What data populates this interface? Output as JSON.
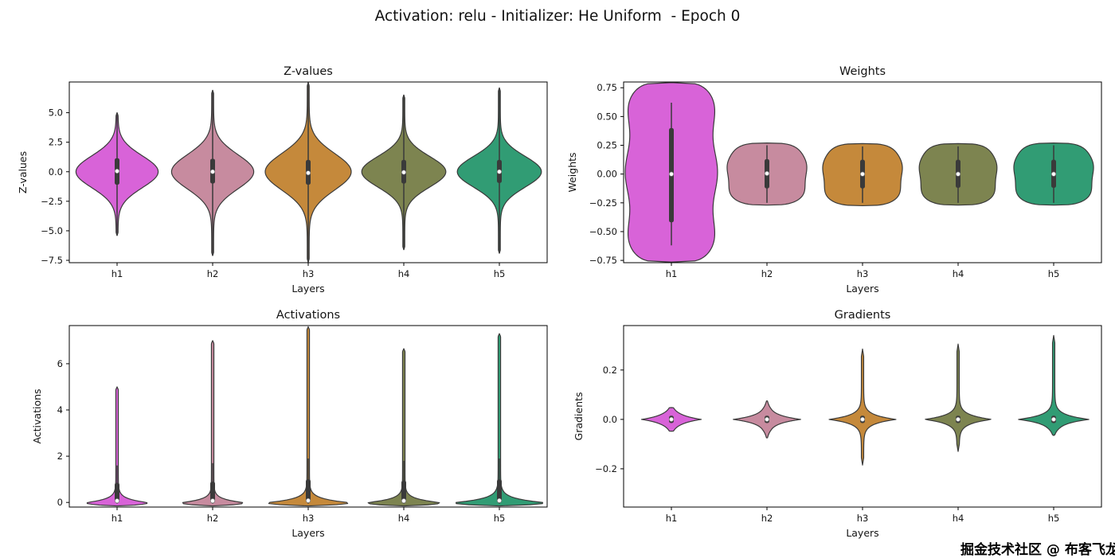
{
  "figure": {
    "title": "Activation: relu - Initializer: He Uniform  - Epoch 0",
    "watermark": "掘金技术社区 @ 布客飞龙",
    "background": "#ffffff",
    "edge_color": "#3a3a3a",
    "palette": {
      "h1": "#d863d8",
      "h2": "#c78b9f",
      "h3": "#c5893b",
      "h4": "#7d8450",
      "h5": "#319c74"
    }
  },
  "chart_data": [
    {
      "type": "violin",
      "title": "Z-values",
      "xlabel": "Layers",
      "ylabel": "Z-values",
      "ylabel_offset": 54,
      "categories": [
        "h1",
        "h2",
        "h3",
        "h4",
        "h5"
      ],
      "ylim": [
        -7.7,
        7.6
      ],
      "yticks": [
        5.0,
        2.5,
        0.0,
        -2.5,
        -5.0,
        -7.5
      ],
      "ytick_labels": [
        "5.0",
        "2.5",
        "0.0",
        "−2.5",
        "−5.0",
        "−7.5"
      ],
      "violins": [
        {
          "label": "h1",
          "color": "#d863d8",
          "shape": {
            "kind": "gaussian",
            "sigma": 1.35,
            "wmax": 0.42,
            "top": 5.0,
            "bottom": -5.4,
            "wmin": 0.01
          },
          "box": [
            -1.1,
            1.15
          ],
          "median": 0.05,
          "whisker": [
            -5.4,
            5.0
          ]
        },
        {
          "label": "h2",
          "color": "#c78b9f",
          "shape": {
            "kind": "gaussian",
            "sigma": 1.45,
            "wmax": 0.42,
            "top": 6.9,
            "bottom": -7.1,
            "wmin": 0.01
          },
          "box": [
            -1.0,
            1.1
          ],
          "median": 0.0,
          "whisker": [
            -7.1,
            6.9
          ]
        },
        {
          "label": "h3",
          "color": "#c5893b",
          "shape": {
            "kind": "gaussian",
            "sigma": 1.55,
            "wmax": 0.44,
            "top": 7.55,
            "bottom": -7.65,
            "wmin": 0.01
          },
          "box": [
            -1.1,
            1.0
          ],
          "median": -0.1,
          "whisker": [
            -7.65,
            7.55
          ]
        },
        {
          "label": "h4",
          "color": "#7d8450",
          "shape": {
            "kind": "gaussian",
            "sigma": 1.3,
            "wmax": 0.43,
            "top": 6.5,
            "bottom": -6.6,
            "wmin": 0.01
          },
          "box": [
            -1.0,
            1.0
          ],
          "median": -0.05,
          "whisker": [
            -6.6,
            6.5
          ]
        },
        {
          "label": "h5",
          "color": "#319c74",
          "shape": {
            "kind": "gaussian",
            "sigma": 1.3,
            "wmax": 0.43,
            "top": 7.1,
            "bottom": -6.9,
            "wmin": 0.01
          },
          "box": [
            -0.95,
            1.0
          ],
          "median": 0.0,
          "whisker": [
            -6.9,
            7.1
          ]
        }
      ]
    },
    {
      "type": "violin",
      "title": "Weights",
      "xlabel": "Layers",
      "ylabel": "Weights",
      "ylabel_offset": 60,
      "categories": [
        "h1",
        "h2",
        "h3",
        "h4",
        "h5"
      ],
      "ylim": [
        -0.77,
        0.8
      ],
      "yticks": [
        0.75,
        0.5,
        0.25,
        0.0,
        -0.25,
        -0.5,
        -0.75
      ],
      "ytick_labels": [
        "0.75",
        "0.50",
        "0.25",
        "0.00",
        "−0.25",
        "−0.50",
        "−0.75"
      ],
      "violins": [
        {
          "label": "h1",
          "color": "#d863d8",
          "shape": {
            "kind": "blob",
            "ymin": -0.765,
            "ymax": 0.795,
            "wmax": 0.46,
            "n": 4.5,
            "amp": 0.05,
            "lumps": 2.5
          },
          "box": [
            -0.42,
            0.4
          ],
          "median": 0.0,
          "whisker": [
            -0.62,
            0.62
          ]
        },
        {
          "label": "h2",
          "color": "#c78b9f",
          "shape": {
            "kind": "blob",
            "ymin": -0.27,
            "ymax": 0.27,
            "wmax": 0.41,
            "n": 3.2,
            "amp": 0.02,
            "lumps": 2.0
          },
          "box": [
            -0.125,
            0.13
          ],
          "median": 0.005,
          "whisker": [
            -0.25,
            0.25
          ]
        },
        {
          "label": "h3",
          "color": "#c5893b",
          "shape": {
            "kind": "blob",
            "ymin": -0.275,
            "ymax": 0.265,
            "wmax": 0.41,
            "n": 3.2,
            "amp": 0.02,
            "lumps": 2.0
          },
          "box": [
            -0.125,
            0.125
          ],
          "median": 0.0,
          "whisker": [
            -0.25,
            0.24
          ]
        },
        {
          "label": "h4",
          "color": "#7d8450",
          "shape": {
            "kind": "blob",
            "ymin": -0.27,
            "ymax": 0.265,
            "wmax": 0.4,
            "n": 3.2,
            "amp": 0.02,
            "lumps": 2.0
          },
          "box": [
            -0.12,
            0.125
          ],
          "median": 0.0,
          "whisker": [
            -0.25,
            0.24
          ]
        },
        {
          "label": "h5",
          "color": "#319c74",
          "shape": {
            "kind": "blob",
            "ymin": -0.27,
            "ymax": 0.27,
            "wmax": 0.41,
            "n": 3.2,
            "amp": 0.02,
            "lumps": 2.0
          },
          "box": [
            -0.12,
            0.125
          ],
          "median": 0.0,
          "whisker": [
            -0.25,
            0.25
          ]
        }
      ]
    },
    {
      "type": "violin",
      "title": "Activations",
      "xlabel": "Layers",
      "ylabel": "Activations",
      "ylabel_offset": 36,
      "categories": [
        "h1",
        "h2",
        "h3",
        "h4",
        "h5"
      ],
      "ylim": [
        -0.2,
        7.65
      ],
      "yticks": [
        6,
        4,
        2,
        0
      ],
      "ytick_labels": [
        "6",
        "4",
        "2",
        "0"
      ],
      "violins": [
        {
          "label": "h1",
          "color": "#d863d8",
          "shape": {
            "kind": "decay",
            "y0": -0.15,
            "wmax": 0.3,
            "tau": 0.16,
            "top": 5.0,
            "wmin": 0.013
          },
          "box": [
            0.0,
            0.85
          ],
          "median": 0.07,
          "whisker": [
            -0.05,
            1.6
          ]
        },
        {
          "label": "h2",
          "color": "#c78b9f",
          "shape": {
            "kind": "decay",
            "y0": -0.15,
            "wmax": 0.3,
            "tau": 0.15,
            "top": 7.0,
            "wmin": 0.013
          },
          "box": [
            0.0,
            0.9
          ],
          "median": 0.07,
          "whisker": [
            -0.05,
            1.7
          ]
        },
        {
          "label": "h3",
          "color": "#c5893b",
          "shape": {
            "kind": "decay",
            "y0": -0.15,
            "wmax": 0.4,
            "tau": 0.17,
            "top": 7.6,
            "wmin": 0.013
          },
          "box": [
            0.0,
            1.0
          ],
          "median": 0.08,
          "whisker": [
            -0.05,
            1.9
          ]
        },
        {
          "label": "h4",
          "color": "#7d8450",
          "shape": {
            "kind": "decay",
            "y0": -0.15,
            "wmax": 0.36,
            "tau": 0.16,
            "top": 6.65,
            "wmin": 0.013
          },
          "box": [
            0.0,
            0.95
          ],
          "median": 0.07,
          "whisker": [
            -0.05,
            1.8
          ]
        },
        {
          "label": "h5",
          "color": "#319c74",
          "shape": {
            "kind": "decay",
            "y0": -0.15,
            "wmax": 0.44,
            "tau": 0.18,
            "top": 7.3,
            "wmin": 0.013
          },
          "box": [
            0.0,
            1.0
          ],
          "median": 0.08,
          "whisker": [
            -0.05,
            1.9
          ]
        }
      ]
    },
    {
      "type": "violin",
      "title": "Gradients",
      "xlabel": "Layers",
      "ylabel": "Gradients",
      "ylabel_offset": 52,
      "categories": [
        "h1",
        "h2",
        "h3",
        "h4",
        "h5"
      ],
      "ylim": [
        -0.355,
        0.38
      ],
      "yticks": [
        0.2,
        0.0,
        -0.2
      ],
      "ytick_labels": [
        "0.2",
        "0.0",
        "−0.2"
      ],
      "violins": [
        {
          "label": "h1",
          "color": "#d863d8",
          "shape": {
            "kind": "spike2",
            "wmax": 0.3,
            "tau": 0.018,
            "top": 0.048,
            "bottom": -0.048,
            "wmin": 0.012
          },
          "box": [
            -0.015,
            0.015
          ],
          "median": 0.0
        },
        {
          "label": "h2",
          "color": "#c78b9f",
          "shape": {
            "kind": "spike2",
            "wmax": 0.34,
            "tau": 0.018,
            "top": 0.075,
            "bottom": -0.075,
            "wmin": 0.012
          },
          "box": [
            -0.015,
            0.015
          ],
          "median": 0.0
        },
        {
          "label": "h3",
          "color": "#c5893b",
          "shape": {
            "kind": "spike2",
            "wmax": 0.34,
            "tau": 0.018,
            "top": 0.285,
            "bottom": -0.185,
            "wmin": 0.012
          },
          "box": [
            -0.015,
            0.015
          ],
          "median": 0.0
        },
        {
          "label": "h4",
          "color": "#7d8450",
          "shape": {
            "kind": "spike2",
            "wmax": 0.34,
            "tau": 0.018,
            "top": 0.305,
            "bottom": -0.13,
            "wmin": 0.012
          },
          "box": [
            -0.015,
            0.015
          ],
          "median": 0.0
        },
        {
          "label": "h5",
          "color": "#319c74",
          "shape": {
            "kind": "spike2",
            "wmax": 0.36,
            "tau": 0.018,
            "top": 0.34,
            "bottom": -0.065,
            "wmin": 0.012
          },
          "box": [
            -0.015,
            0.015
          ],
          "median": 0.0
        }
      ]
    }
  ]
}
